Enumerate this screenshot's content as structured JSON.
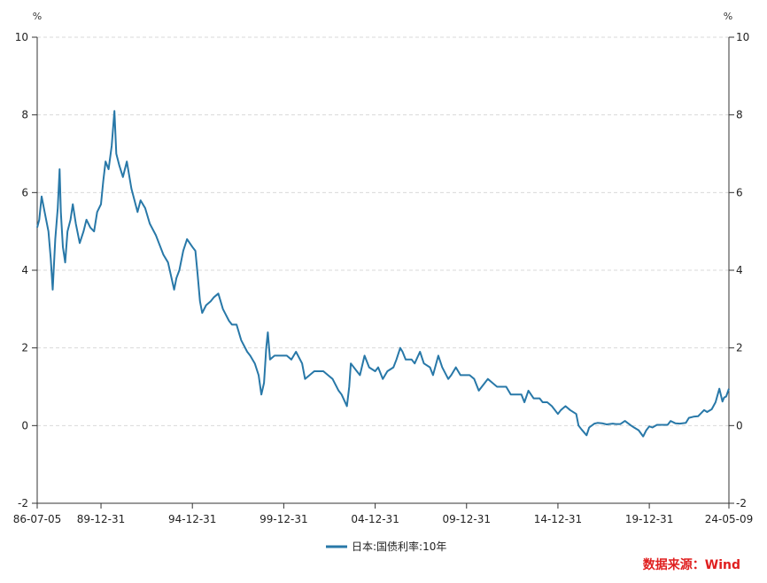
{
  "colors": {
    "series": "#2878a8",
    "source": "#e02020",
    "grid": "#d9d9d9",
    "axis": "#333333"
  },
  "source_text": "数据来源：Wind",
  "chart_data": {
    "type": "line",
    "title": "",
    "xlabel": "",
    "ylabel": "%",
    "y2label": "%",
    "ylim": [
      -2,
      10
    ],
    "yticks": [
      -2,
      0,
      2,
      4,
      6,
      8,
      10
    ],
    "grid": "horizontal-dashed",
    "legend": "bottom-center",
    "x_range": [
      "1986-07-05",
      "2024-05-09"
    ],
    "xtick_labels": [
      "86-07-05",
      "89-12-31",
      "94-12-31",
      "99-12-31",
      "04-12-31",
      "09-12-31",
      "14-12-31",
      "19-12-31",
      "24-05-09"
    ],
    "xtick_dates": [
      "1986-07-05",
      "1989-12-31",
      "1994-12-31",
      "1999-12-31",
      "2004-12-31",
      "2009-12-31",
      "2014-12-31",
      "2019-12-31",
      "2024-05-09"
    ],
    "series": [
      {
        "name": "日本:国债利率:10年",
        "points": [
          [
            "1986-07-05",
            5.1
          ],
          [
            "1986-08-15",
            5.3
          ],
          [
            "1986-10-01",
            5.9
          ],
          [
            "1986-12-01",
            5.5
          ],
          [
            "1987-02-15",
            5.0
          ],
          [
            "1987-04-01",
            4.3
          ],
          [
            "1987-05-10",
            3.5
          ],
          [
            "1987-07-01",
            4.8
          ],
          [
            "1987-08-20",
            5.6
          ],
          [
            "1987-09-25",
            6.6
          ],
          [
            "1987-10-20",
            5.5
          ],
          [
            "1987-12-01",
            4.6
          ],
          [
            "1988-01-15",
            4.2
          ],
          [
            "1988-03-01",
            5.0
          ],
          [
            "1988-05-01",
            5.3
          ],
          [
            "1988-06-15",
            5.7
          ],
          [
            "1988-08-15",
            5.2
          ],
          [
            "1988-11-01",
            4.7
          ],
          [
            "1989-01-15",
            5.0
          ],
          [
            "1989-03-15",
            5.3
          ],
          [
            "1989-06-01",
            5.1
          ],
          [
            "1989-08-15",
            5.0
          ],
          [
            "1989-10-15",
            5.5
          ],
          [
            "1989-12-31",
            5.7
          ],
          [
            "1990-02-15",
            6.3
          ],
          [
            "1990-04-01",
            6.8
          ],
          [
            "1990-06-01",
            6.6
          ],
          [
            "1990-08-01",
            7.2
          ],
          [
            "1990-09-25",
            8.1
          ],
          [
            "1990-11-01",
            7.0
          ],
          [
            "1991-01-01",
            6.7
          ],
          [
            "1991-03-15",
            6.4
          ],
          [
            "1991-06-01",
            6.8
          ],
          [
            "1991-09-01",
            6.1
          ],
          [
            "1991-12-31",
            5.5
          ],
          [
            "1992-03-01",
            5.8
          ],
          [
            "1992-06-01",
            5.6
          ],
          [
            "1992-09-01",
            5.2
          ],
          [
            "1992-12-31",
            4.9
          ],
          [
            "1993-03-01",
            4.7
          ],
          [
            "1993-06-01",
            4.4
          ],
          [
            "1993-09-01",
            4.2
          ],
          [
            "1993-12-31",
            3.5
          ],
          [
            "1994-02-15",
            3.8
          ],
          [
            "1994-04-15",
            4.0
          ],
          [
            "1994-07-01",
            4.5
          ],
          [
            "1994-09-15",
            4.8
          ],
          [
            "1994-12-31",
            4.6
          ],
          [
            "1995-03-01",
            4.5
          ],
          [
            "1995-04-15",
            3.9
          ],
          [
            "1995-06-01",
            3.2
          ],
          [
            "1995-07-15",
            2.9
          ],
          [
            "1995-10-01",
            3.1
          ],
          [
            "1995-12-31",
            3.2
          ],
          [
            "1996-03-01",
            3.3
          ],
          [
            "1996-06-01",
            3.4
          ],
          [
            "1996-09-01",
            3.0
          ],
          [
            "1996-12-31",
            2.7
          ],
          [
            "1997-03-01",
            2.6
          ],
          [
            "1997-06-01",
            2.6
          ],
          [
            "1997-09-01",
            2.2
          ],
          [
            "1997-12-31",
            1.9
          ],
          [
            "1998-03-01",
            1.8
          ],
          [
            "1998-06-01",
            1.6
          ],
          [
            "1998-08-15",
            1.3
          ],
          [
            "1998-10-10",
            0.8
          ],
          [
            "1998-12-01",
            1.1
          ],
          [
            "1999-01-15",
            2.0
          ],
          [
            "1999-02-15",
            2.4
          ],
          [
            "1999-04-01",
            1.7
          ],
          [
            "1999-07-01",
            1.8
          ],
          [
            "1999-12-31",
            1.8
          ],
          [
            "2000-03-01",
            1.8
          ],
          [
            "2000-06-01",
            1.7
          ],
          [
            "2000-09-01",
            1.9
          ],
          [
            "2000-12-31",
            1.6
          ],
          [
            "2001-03-01",
            1.2
          ],
          [
            "2001-06-01",
            1.3
          ],
          [
            "2001-09-01",
            1.4
          ],
          [
            "2001-12-31",
            1.4
          ],
          [
            "2002-03-01",
            1.4
          ],
          [
            "2002-06-01",
            1.3
          ],
          [
            "2002-09-01",
            1.2
          ],
          [
            "2002-12-31",
            0.9
          ],
          [
            "2003-03-01",
            0.8
          ],
          [
            "2003-06-15",
            0.5
          ],
          [
            "2003-08-01",
            1.0
          ],
          [
            "2003-09-01",
            1.6
          ],
          [
            "2003-12-31",
            1.4
          ],
          [
            "2004-03-01",
            1.3
          ],
          [
            "2004-06-01",
            1.8
          ],
          [
            "2004-09-01",
            1.5
          ],
          [
            "2004-12-31",
            1.4
          ],
          [
            "2005-03-01",
            1.5
          ],
          [
            "2005-06-01",
            1.2
          ],
          [
            "2005-09-01",
            1.4
          ],
          [
            "2005-12-31",
            1.5
          ],
          [
            "2006-03-01",
            1.7
          ],
          [
            "2006-05-15",
            2.0
          ],
          [
            "2006-07-01",
            1.9
          ],
          [
            "2006-09-01",
            1.7
          ],
          [
            "2006-12-31",
            1.7
          ],
          [
            "2007-03-01",
            1.6
          ],
          [
            "2007-06-15",
            1.9
          ],
          [
            "2007-09-01",
            1.6
          ],
          [
            "2007-12-31",
            1.5
          ],
          [
            "2008-03-01",
            1.3
          ],
          [
            "2008-06-15",
            1.8
          ],
          [
            "2008-09-01",
            1.5
          ],
          [
            "2008-12-31",
            1.2
          ],
          [
            "2009-03-01",
            1.3
          ],
          [
            "2009-06-01",
            1.5
          ],
          [
            "2009-09-01",
            1.3
          ],
          [
            "2009-12-31",
            1.3
          ],
          [
            "2010-03-01",
            1.3
          ],
          [
            "2010-06-01",
            1.2
          ],
          [
            "2010-09-01",
            0.9
          ],
          [
            "2010-12-31",
            1.1
          ],
          [
            "2011-03-01",
            1.2
          ],
          [
            "2011-06-01",
            1.1
          ],
          [
            "2011-09-01",
            1.0
          ],
          [
            "2011-12-31",
            1.0
          ],
          [
            "2012-03-01",
            1.0
          ],
          [
            "2012-06-01",
            0.8
          ],
          [
            "2012-09-01",
            0.8
          ],
          [
            "2012-12-31",
            0.8
          ],
          [
            "2013-03-01",
            0.6
          ],
          [
            "2013-05-20",
            0.9
          ],
          [
            "2013-09-01",
            0.7
          ],
          [
            "2013-12-31",
            0.7
          ],
          [
            "2014-03-01",
            0.6
          ],
          [
            "2014-06-01",
            0.6
          ],
          [
            "2014-09-01",
            0.5
          ],
          [
            "2014-12-31",
            0.3
          ],
          [
            "2015-03-01",
            0.4
          ],
          [
            "2015-06-01",
            0.5
          ],
          [
            "2015-09-01",
            0.4
          ],
          [
            "2015-12-31",
            0.3
          ],
          [
            "2016-02-15",
            0.0
          ],
          [
            "2016-04-15",
            -0.1
          ],
          [
            "2016-07-25",
            -0.25
          ],
          [
            "2016-09-15",
            -0.05
          ],
          [
            "2016-12-31",
            0.05
          ],
          [
            "2017-03-01",
            0.07
          ],
          [
            "2017-06-01",
            0.06
          ],
          [
            "2017-09-01",
            0.03
          ],
          [
            "2017-12-31",
            0.05
          ],
          [
            "2018-03-01",
            0.04
          ],
          [
            "2018-06-01",
            0.04
          ],
          [
            "2018-09-01",
            0.12
          ],
          [
            "2018-12-31",
            0.0
          ],
          [
            "2019-03-01",
            -0.05
          ],
          [
            "2019-06-01",
            -0.12
          ],
          [
            "2019-08-30",
            -0.28
          ],
          [
            "2019-11-01",
            -0.12
          ],
          [
            "2019-12-31",
            -0.02
          ],
          [
            "2020-03-01",
            -0.05
          ],
          [
            "2020-06-01",
            0.02
          ],
          [
            "2020-09-01",
            0.02
          ],
          [
            "2020-12-31",
            0.02
          ],
          [
            "2021-03-01",
            0.12
          ],
          [
            "2021-06-01",
            0.06
          ],
          [
            "2021-09-01",
            0.05
          ],
          [
            "2021-12-31",
            0.07
          ],
          [
            "2022-03-01",
            0.2
          ],
          [
            "2022-06-01",
            0.23
          ],
          [
            "2022-09-01",
            0.24
          ],
          [
            "2022-12-31",
            0.4
          ],
          [
            "2023-03-01",
            0.35
          ],
          [
            "2023-06-01",
            0.42
          ],
          [
            "2023-08-15",
            0.6
          ],
          [
            "2023-10-31",
            0.95
          ],
          [
            "2023-12-31",
            0.62
          ],
          [
            "2024-02-01",
            0.72
          ],
          [
            "2024-03-15",
            0.75
          ],
          [
            "2024-05-09",
            0.95
          ]
        ]
      }
    ]
  }
}
